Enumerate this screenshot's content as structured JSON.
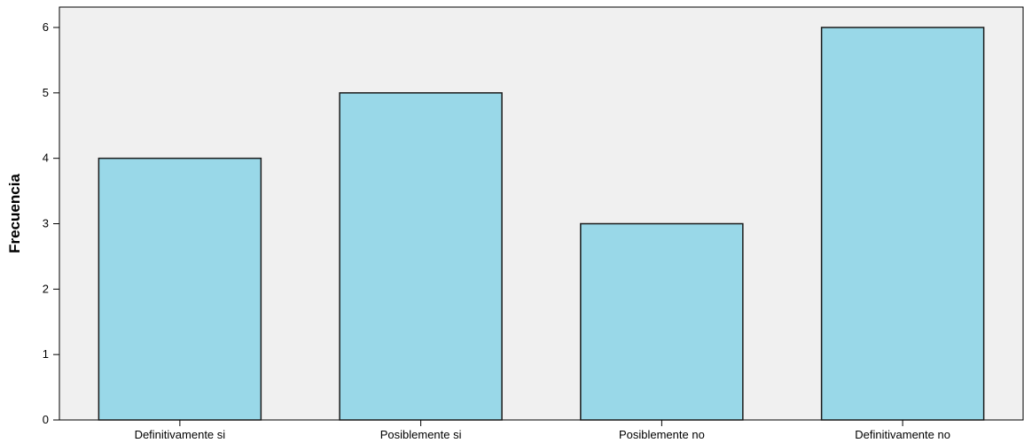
{
  "chart_data": {
    "type": "bar",
    "title": "",
    "xlabel": "",
    "ylabel": "Frecuencia",
    "categories": [
      "Definitivamente si",
      "Posiblemente si",
      "Posiblemente no",
      "Definitivamente no"
    ],
    "values": [
      4,
      5,
      3,
      6
    ],
    "ylim": [
      0,
      6
    ],
    "yticks": [
      0,
      1,
      2,
      3,
      4,
      5,
      6
    ],
    "grid": false,
    "legend": "none",
    "colors": {
      "bar_fill": "#99d8e8",
      "bar_stroke": "#1a1a1a",
      "plot_background": "#f0f0f0",
      "axis": "#000000"
    }
  }
}
